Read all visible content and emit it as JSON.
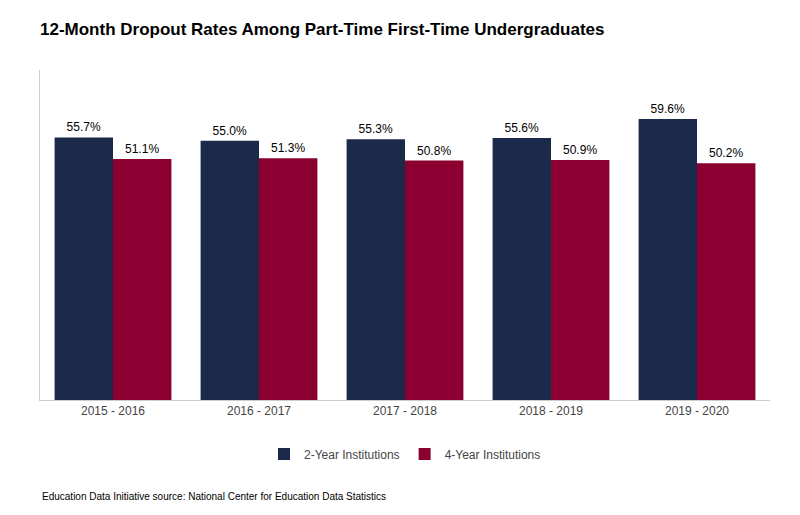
{
  "chart_data": {
    "type": "bar",
    "title": "12-Month Dropout Rates Among Part-Time First-Time Undergraduates",
    "categories": [
      "2015 - 2016",
      "2016 - 2017",
      "2017 - 2018",
      "2018 - 2019",
      "2019 - 2020"
    ],
    "series": [
      {
        "name": "2-Year Institutions",
        "color": "#1b2a4a",
        "values": [
          55.7,
          55.0,
          55.3,
          55.6,
          59.6
        ],
        "value_labels": [
          "55.7%",
          "55.0%",
          "55.3%",
          "55.6%",
          "59.6%"
        ]
      },
      {
        "name": "4-Year Institutions",
        "color": "#8b0030",
        "values": [
          51.1,
          51.3,
          50.8,
          50.9,
          50.2
        ],
        "value_labels": [
          "51.1%",
          "51.3%",
          "50.8%",
          "50.9%",
          "50.2%"
        ]
      }
    ],
    "ylim": [
      0,
      70
    ],
    "tick_labels": "x",
    "grid": false,
    "legend": "bottom",
    "data_labels": true,
    "annotations": [
      "Education Data Initiative source: National Center for Education Data Statistics"
    ]
  }
}
